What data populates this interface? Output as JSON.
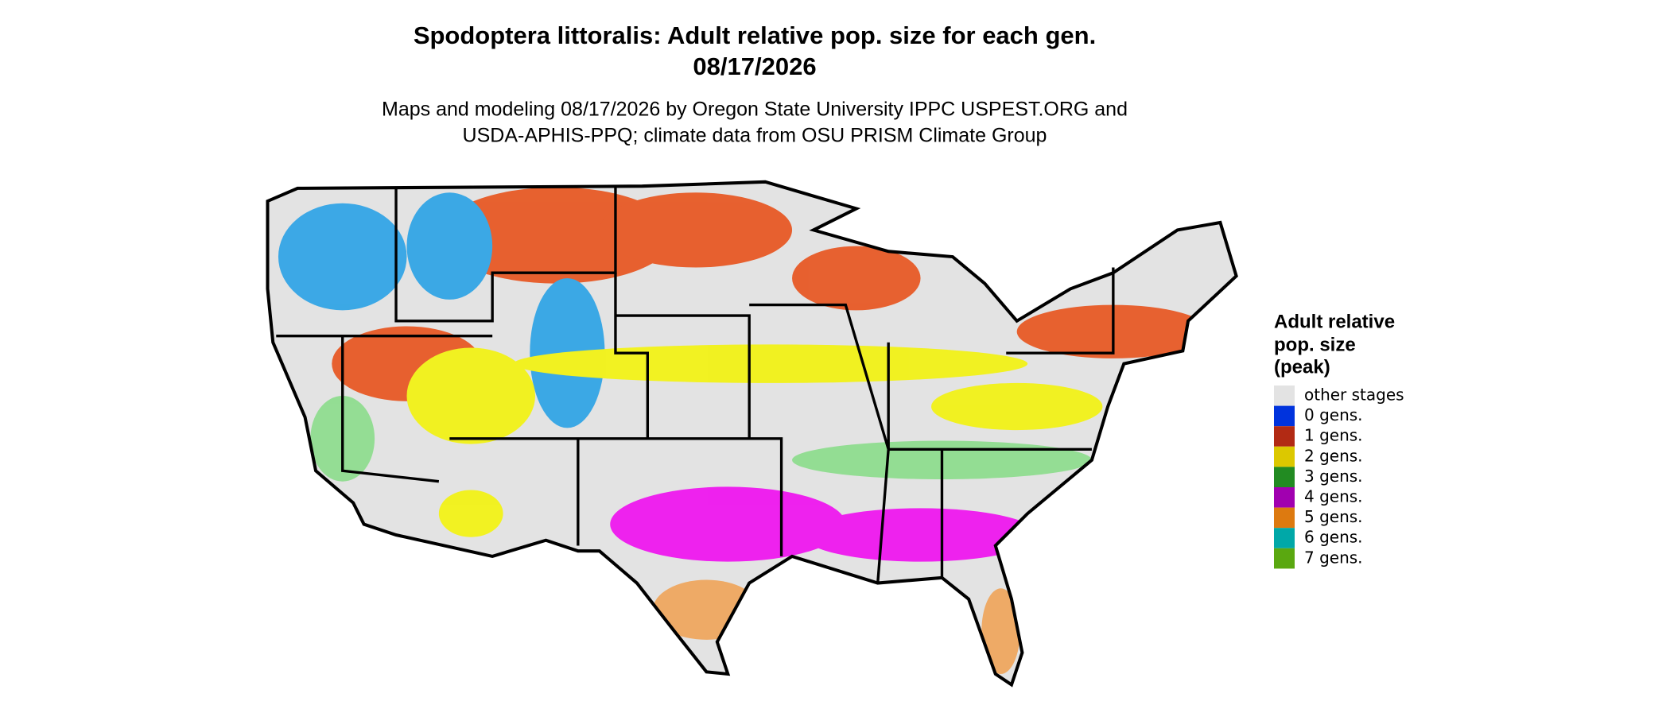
{
  "title": "Spodoptera littoralis: Adult relative pop. size for each gen.",
  "date": "08/17/2026",
  "subtitle": [
    "Maps and modeling 08/17/2026 by Oregon State University IPPC USPEST.ORG and",
    "USDA-APHIS-PPQ; climate data from OSU PRISM Climate Group"
  ],
  "legend": {
    "title": [
      "Adult relative",
      "pop. size",
      "(peak)"
    ],
    "items": [
      {
        "label": "other stages",
        "color": "#e3e3e3"
      },
      {
        "label": "0 gens.",
        "color": "#0033dd"
      },
      {
        "label": "1 gens.",
        "color": "#b22a14"
      },
      {
        "label": "2 gens.",
        "color": "#dcc800"
      },
      {
        "label": "3 gens.",
        "color": "#228b22"
      },
      {
        "label": "4 gens.",
        "color": "#a100b0"
      },
      {
        "label": "5 gens.",
        "color": "#dd7a10"
      },
      {
        "label": "6 gens.",
        "color": "#00a8a8"
      },
      {
        "label": "7 gens.",
        "color": "#5aa810"
      }
    ]
  }
}
